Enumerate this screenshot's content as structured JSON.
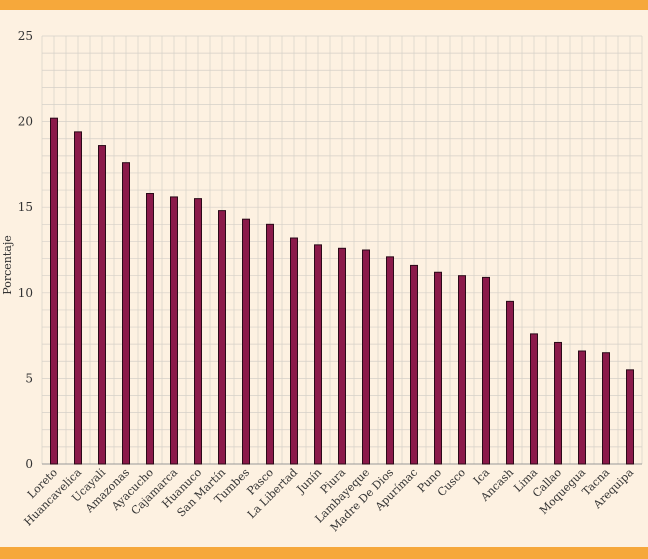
{
  "chart_data": {
    "type": "bar",
    "title": "",
    "xlabel": "",
    "ylabel": "Porcentaje",
    "ylim": [
      0,
      25
    ],
    "yticks": [
      0,
      5,
      10,
      15,
      20,
      25
    ],
    "grid": true,
    "categories": [
      "Loreto",
      "Huancavelica",
      "Ucayali",
      "Amazonas",
      "Ayacucho",
      "Cajamarca",
      "Huanuco",
      "San Martín",
      "Tumbes",
      "Pasco",
      "La Libertad",
      "Junín",
      "Piura",
      "Lambayeque",
      "Madre De Dios",
      "Apurímac",
      "Puno",
      "Cusco",
      "Ica",
      "Ancash",
      "Lima",
      "Callao",
      "Moquegua",
      "Tacna",
      "Arequipa"
    ],
    "values": [
      20.2,
      19.4,
      18.6,
      17.6,
      15.8,
      15.6,
      15.5,
      14.8,
      14.3,
      14.0,
      13.2,
      12.8,
      12.6,
      12.5,
      12.1,
      11.6,
      11.2,
      11.0,
      10.9,
      9.5,
      7.6,
      7.1,
      6.6,
      6.5,
      5.5
    ],
    "colors": {
      "bar": "#8b1a4a",
      "bar_edge": "#2a0a18",
      "grid": "#d5d0c8",
      "background": "#fdf1e1",
      "band": "#f6a83b"
    }
  }
}
